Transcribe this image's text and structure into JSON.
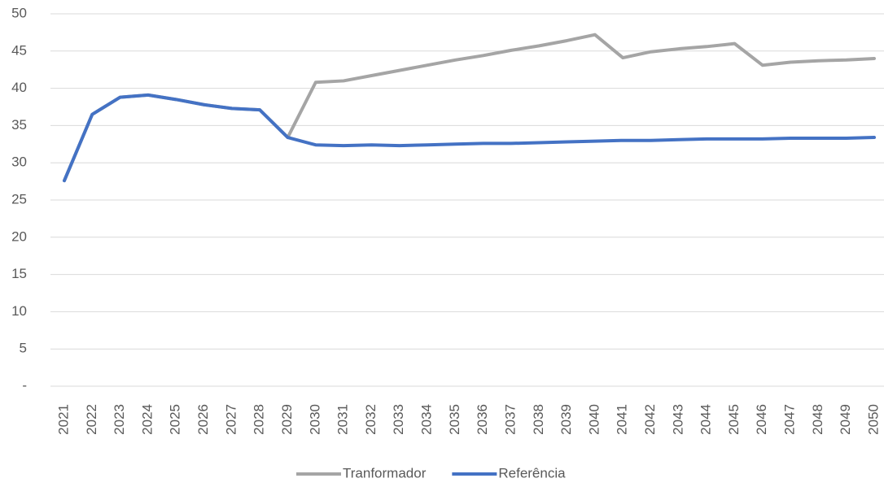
{
  "chart_data": {
    "type": "line",
    "categories": [
      "2021",
      "2022",
      "2023",
      "2024",
      "2025",
      "2026",
      "2027",
      "2028",
      "2029",
      "2030",
      "2031",
      "2032",
      "2033",
      "2034",
      "2035",
      "2036",
      "2037",
      "2038",
      "2039",
      "2040",
      "2041",
      "2042",
      "2043",
      "2044",
      "2045",
      "2046",
      "2047",
      "2048",
      "2049",
      "2050"
    ],
    "series": [
      {
        "name": "Tranformador",
        "color": "#a5a5a5",
        "values": [
          27.6,
          36.5,
          38.8,
          39.1,
          38.5,
          37.8,
          37.3,
          37.1,
          33.4,
          40.8,
          41.0,
          41.7,
          42.4,
          43.1,
          43.8,
          44.4,
          45.1,
          45.7,
          46.4,
          47.2,
          44.1,
          44.9,
          45.3,
          45.6,
          46.0,
          43.1,
          43.5,
          43.7,
          43.8,
          44.0
        ]
      },
      {
        "name": "Referência",
        "color": "#4472c4",
        "values": [
          27.6,
          36.5,
          38.8,
          39.1,
          38.5,
          37.8,
          37.3,
          37.1,
          33.4,
          32.4,
          32.3,
          32.4,
          32.3,
          32.4,
          32.5,
          32.6,
          32.6,
          32.7,
          32.8,
          32.9,
          33.0,
          33.0,
          33.1,
          33.2,
          33.2,
          33.2,
          33.3,
          33.3,
          33.3,
          33.4
        ]
      }
    ],
    "ylim": [
      0,
      50
    ],
    "yticks": [
      {
        "value": 0,
        "label": "-"
      },
      5,
      10,
      15,
      20,
      25,
      30,
      35,
      40,
      45,
      50
    ],
    "grid": true,
    "legend": "bottom"
  }
}
